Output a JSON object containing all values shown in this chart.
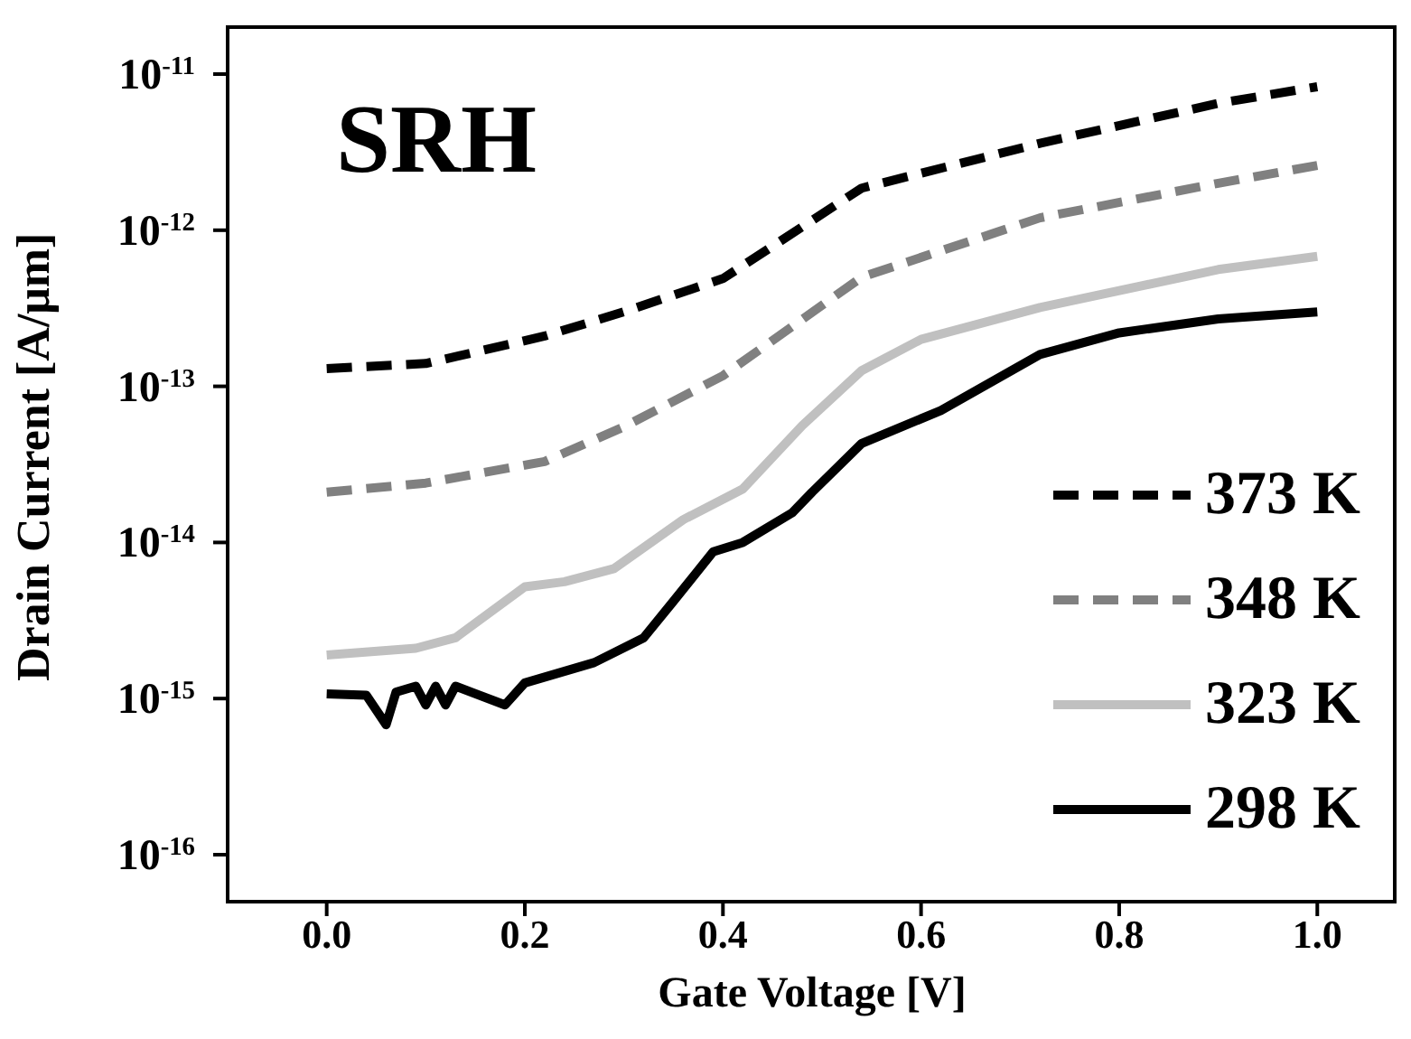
{
  "chart_data": {
    "type": "line",
    "xlabel": "Gate Voltage [V]",
    "ylabel": "Drain Current [A/μm]",
    "annotations": [
      "SRH"
    ],
    "log": "y",
    "legend": "bottom right",
    "marker": "none",
    "xlim": [
      -0.1,
      1.08
    ],
    "xticks": [
      {
        "value": 0,
        "label": "0.0"
      },
      {
        "value": 0.2,
        "label": "0.2"
      },
      {
        "value": 0.4,
        "label": "0.4"
      },
      {
        "value": 0.6,
        "label": "0.6"
      },
      {
        "value": 0.8,
        "label": "0.8"
      },
      {
        "value": 1,
        "label": "1.0"
      }
    ],
    "ylim": [
      5e-17,
      2e-11
    ],
    "yticks": [
      {
        "value": 1e-16,
        "label": "10$^{-16}$"
      },
      {
        "value": 1e-15,
        "label": "10$^{-15}$"
      },
      {
        "value": 1e-14,
        "label": "10$^{-14}$"
      },
      {
        "value": 1e-13,
        "label": "10$^{-13}$"
      },
      {
        "value": 1e-12,
        "label": "10$^{-12}$"
      },
      {
        "value": 1e-11,
        "label": "10$^{-11}$"
      }
    ],
    "series": [
      {
        "name": "373 K",
        "color": "#000000",
        "line_style": "dashed",
        "x": [
          0,
          0.1,
          0.22,
          0.3,
          0.4,
          0.54,
          0.72,
          0.9,
          1.0
        ],
        "values": [
          1.3e-13,
          1.4e-13,
          2.1e-13,
          3e-13,
          4.9e-13,
          1.86e-12,
          3.6e-12,
          6.5e-12,
          8.3e-12
        ]
      },
      {
        "name": "348 K",
        "color": "#808080",
        "line_style": "dashed",
        "x": [
          0,
          0.1,
          0.22,
          0.3,
          0.4,
          0.54,
          0.72,
          0.9,
          1.0
        ],
        "values": [
          2.1e-14,
          2.4e-14,
          3.3e-14,
          5.5e-14,
          1.17e-13,
          5e-13,
          1.2e-12,
          2e-12,
          2.6e-12
        ]
      },
      {
        "name": "323 K",
        "color": "#c0c0c0",
        "line_style": "solid",
        "x": [
          0,
          0.09,
          0.13,
          0.2,
          0.24,
          0.29,
          0.36,
          0.42,
          0.48,
          0.54,
          0.6,
          0.72,
          0.9,
          1.0
        ],
        "values": [
          1.9e-15,
          2.1e-15,
          2.45e-15,
          5.2e-15,
          5.6e-15,
          6.8e-15,
          1.4e-14,
          2.2e-14,
          5.6e-14,
          1.26e-13,
          2e-13,
          3.2e-13,
          5.6e-13,
          6.8e-13
        ]
      },
      {
        "name": "298 K",
        "color": "#000000",
        "line_style": "solid",
        "x": [
          0,
          0.04,
          0.06,
          0.07,
          0.09,
          0.1,
          0.11,
          0.12,
          0.13,
          0.18,
          0.2,
          0.27,
          0.32,
          0.35,
          0.39,
          0.42,
          0.47,
          0.49,
          0.54,
          0.62,
          0.72,
          0.8,
          0.9,
          1.0
        ],
        "values": [
          1.07e-15,
          1.05e-15,
          6.8e-16,
          1.1e-15,
          1.2e-15,
          9.1e-16,
          1.2e-15,
          9.1e-16,
          1.2e-15,
          9.1e-16,
          1.26e-15,
          1.7e-15,
          2.45e-15,
          4.2e-15,
          8.7e-15,
          1e-14,
          1.55e-14,
          2.1e-14,
          4.3e-14,
          7e-14,
          1.6e-13,
          2.2e-13,
          2.7e-13,
          3e-13
        ]
      }
    ]
  }
}
